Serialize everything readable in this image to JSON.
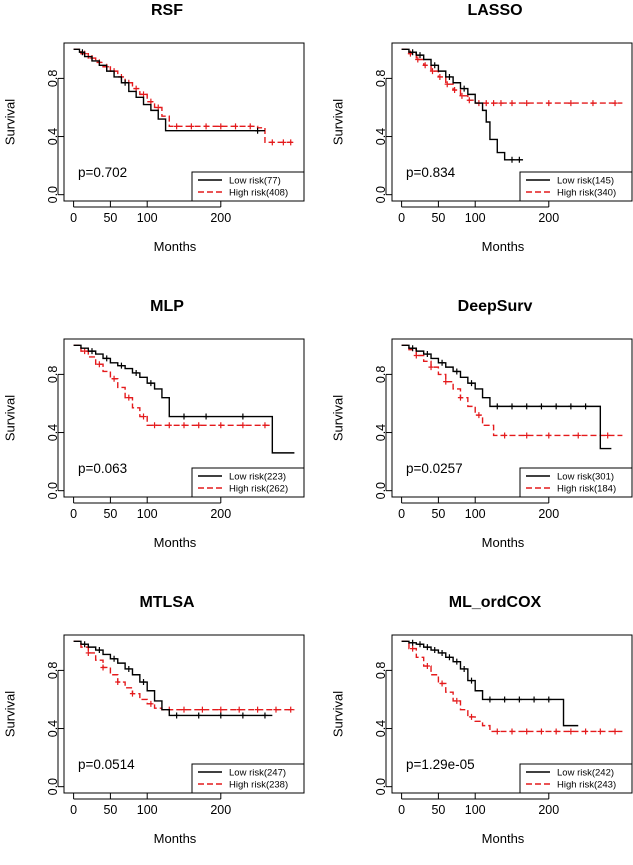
{
  "chart_data": [
    {
      "type": "line",
      "title": "RSF",
      "xlabel": "Months",
      "ylabel": "Survival",
      "xlim": [
        0,
        300
      ],
      "ylim": [
        0,
        1
      ],
      "xticks": [
        0,
        50,
        100,
        200
      ],
      "yticks": [
        0.0,
        0.4,
        0.8
      ],
      "p_value": "p=0.702",
      "legend_position": "bottom-right",
      "series": [
        {
          "name": "Low risk(77)",
          "color": "#000000",
          "dash": "solid",
          "x": [
            0,
            8,
            15,
            25,
            35,
            45,
            55,
            65,
            75,
            85,
            95,
            105,
            115,
            125,
            260
          ],
          "y": [
            1.0,
            0.98,
            0.95,
            0.92,
            0.89,
            0.85,
            0.81,
            0.77,
            0.71,
            0.67,
            0.62,
            0.58,
            0.52,
            0.44,
            0.44
          ],
          "censors": [
            12,
            70,
            250
          ]
        },
        {
          "name": "High risk(408)",
          "color": "#e41a1c",
          "dash": "dashed",
          "x": [
            0,
            10,
            20,
            30,
            40,
            50,
            60,
            70,
            80,
            90,
            100,
            110,
            120,
            130,
            250,
            260,
            300
          ],
          "y": [
            1.0,
            0.97,
            0.94,
            0.91,
            0.88,
            0.85,
            0.81,
            0.77,
            0.73,
            0.69,
            0.64,
            0.6,
            0.54,
            0.47,
            0.46,
            0.36,
            0.36
          ],
          "censors": [
            15,
            25,
            35,
            45,
            55,
            65,
            75,
            85,
            95,
            105,
            115,
            140,
            160,
            180,
            200,
            220,
            240,
            270,
            285,
            295
          ]
        }
      ]
    },
    {
      "type": "line",
      "title": "LASSO",
      "xlabel": "Months",
      "ylabel": "Survival",
      "xlim": [
        0,
        300
      ],
      "ylim": [
        0,
        1
      ],
      "xticks": [
        0,
        50,
        100,
        200
      ],
      "yticks": [
        0.0,
        0.4,
        0.8
      ],
      "p_value": "p=0.834",
      "legend_position": "bottom-right",
      "series": [
        {
          "name": "Low risk(145)",
          "color": "#000000",
          "dash": "solid",
          "x": [
            0,
            10,
            20,
            30,
            40,
            50,
            60,
            70,
            80,
            90,
            100,
            110,
            115,
            120,
            130,
            140,
            165
          ],
          "y": [
            1.0,
            0.98,
            0.96,
            0.93,
            0.89,
            0.85,
            0.81,
            0.77,
            0.73,
            0.69,
            0.63,
            0.58,
            0.5,
            0.38,
            0.29,
            0.24,
            0.24
          ],
          "censors": [
            15,
            25,
            45,
            65,
            85,
            150,
            160
          ]
        },
        {
          "name": "High risk(340)",
          "color": "#e41a1c",
          "dash": "dashed",
          "x": [
            0,
            10,
            20,
            30,
            40,
            50,
            60,
            70,
            80,
            90,
            100,
            300
          ],
          "y": [
            1.0,
            0.97,
            0.93,
            0.89,
            0.85,
            0.81,
            0.76,
            0.72,
            0.68,
            0.65,
            0.63,
            0.63
          ],
          "censors": [
            12,
            22,
            32,
            42,
            52,
            62,
            72,
            82,
            92,
            105,
            115,
            125,
            135,
            150,
            170,
            200,
            230,
            260,
            290
          ]
        }
      ]
    },
    {
      "type": "line",
      "title": "MLP",
      "xlabel": "Months",
      "ylabel": "Survival",
      "xlim": [
        0,
        300
      ],
      "ylim": [
        0,
        1
      ],
      "xticks": [
        0,
        50,
        100,
        200
      ],
      "yticks": [
        0.0,
        0.4,
        0.8
      ],
      "p_value": "p=0.063",
      "legend_position": "bottom-right",
      "series": [
        {
          "name": "Low risk(223)",
          "color": "#000000",
          "dash": "solid",
          "x": [
            0,
            10,
            20,
            30,
            40,
            50,
            60,
            70,
            80,
            90,
            100,
            110,
            120,
            130,
            270,
            300
          ],
          "y": [
            1.0,
            0.98,
            0.96,
            0.94,
            0.91,
            0.88,
            0.86,
            0.84,
            0.81,
            0.78,
            0.74,
            0.7,
            0.64,
            0.51,
            0.26,
            0.26
          ],
          "censors": [
            25,
            45,
            65,
            85,
            105,
            150,
            180,
            230
          ]
        },
        {
          "name": "High risk(262)",
          "color": "#e41a1c",
          "dash": "dashed",
          "x": [
            0,
            10,
            20,
            30,
            40,
            50,
            60,
            70,
            80,
            90,
            100,
            270
          ],
          "y": [
            1.0,
            0.96,
            0.92,
            0.87,
            0.82,
            0.77,
            0.71,
            0.64,
            0.57,
            0.51,
            0.45,
            0.45
          ],
          "censors": [
            15,
            35,
            55,
            75,
            95,
            110,
            130,
            150,
            170,
            200,
            230,
            260
          ]
        }
      ]
    },
    {
      "type": "line",
      "title": "DeepSurv",
      "xlabel": "Months",
      "ylabel": "Survival",
      "xlim": [
        0,
        300
      ],
      "ylim": [
        0,
        1
      ],
      "xticks": [
        0,
        50,
        100,
        200
      ],
      "yticks": [
        0.0,
        0.4,
        0.8
      ],
      "p_value": "p=0.0257",
      "legend_position": "bottom-right",
      "series": [
        {
          "name": "Low risk(301)",
          "color": "#000000",
          "dash": "solid",
          "x": [
            0,
            10,
            20,
            30,
            40,
            50,
            60,
            70,
            80,
            90,
            100,
            110,
            120,
            260,
            270,
            285
          ],
          "y": [
            1.0,
            0.98,
            0.96,
            0.94,
            0.91,
            0.88,
            0.85,
            0.82,
            0.78,
            0.74,
            0.7,
            0.64,
            0.58,
            0.58,
            0.29,
            0.29
          ],
          "censors": [
            15,
            35,
            55,
            75,
            95,
            130,
            150,
            170,
            190,
            210,
            230,
            250
          ]
        },
        {
          "name": "High risk(184)",
          "color": "#e41a1c",
          "dash": "dashed",
          "x": [
            0,
            10,
            20,
            30,
            40,
            50,
            60,
            70,
            80,
            90,
            100,
            110,
            125,
            300
          ],
          "y": [
            1.0,
            0.97,
            0.93,
            0.89,
            0.85,
            0.8,
            0.75,
            0.7,
            0.64,
            0.58,
            0.52,
            0.45,
            0.38,
            0.38
          ],
          "censors": [
            20,
            40,
            60,
            80,
            105,
            140,
            170,
            200,
            240,
            280
          ]
        }
      ]
    },
    {
      "type": "line",
      "title": "MTLSA",
      "xlabel": "Months",
      "ylabel": "Survival",
      "xlim": [
        0,
        300
      ],
      "ylim": [
        0,
        1
      ],
      "xticks": [
        0,
        50,
        100,
        200
      ],
      "yticks": [
        0.0,
        0.4,
        0.8
      ],
      "p_value": "p=0.0514",
      "legend_position": "bottom-right",
      "series": [
        {
          "name": "Low risk(247)",
          "color": "#000000",
          "dash": "solid",
          "x": [
            0,
            10,
            20,
            30,
            40,
            50,
            60,
            70,
            80,
            90,
            100,
            110,
            120,
            130,
            270
          ],
          "y": [
            1.0,
            0.98,
            0.96,
            0.94,
            0.91,
            0.88,
            0.85,
            0.81,
            0.77,
            0.72,
            0.66,
            0.59,
            0.53,
            0.49,
            0.49
          ],
          "censors": [
            15,
            35,
            55,
            75,
            95,
            140,
            170,
            200,
            230,
            260
          ]
        },
        {
          "name": "High risk(238)",
          "color": "#e41a1c",
          "dash": "dashed",
          "x": [
            0,
            10,
            20,
            30,
            40,
            50,
            60,
            70,
            80,
            90,
            100,
            110,
            120,
            300
          ],
          "y": [
            1.0,
            0.96,
            0.92,
            0.87,
            0.82,
            0.77,
            0.72,
            0.68,
            0.64,
            0.6,
            0.57,
            0.54,
            0.53,
            0.53
          ],
          "censors": [
            20,
            40,
            60,
            80,
            105,
            130,
            150,
            175,
            200,
            225,
            250,
            275,
            295
          ]
        }
      ]
    },
    {
      "type": "line",
      "title": "ML_ordCOX",
      "xlabel": "Months",
      "ylabel": "Survival",
      "xlim": [
        0,
        300
      ],
      "ylim": [
        0,
        1
      ],
      "xticks": [
        0,
        50,
        100,
        200
      ],
      "yticks": [
        0.0,
        0.4,
        0.8
      ],
      "p_value": "p=1.29e-05",
      "legend_position": "bottom-right",
      "series": [
        {
          "name": "Low risk(242)",
          "color": "#000000",
          "dash": "solid",
          "x": [
            0,
            10,
            20,
            30,
            40,
            50,
            60,
            70,
            80,
            90,
            100,
            110,
            210,
            220,
            240
          ],
          "y": [
            1.0,
            0.99,
            0.98,
            0.96,
            0.94,
            0.92,
            0.89,
            0.86,
            0.81,
            0.73,
            0.66,
            0.6,
            0.6,
            0.42,
            0.42
          ],
          "censors": [
            15,
            25,
            35,
            45,
            55,
            65,
            75,
            85,
            95,
            120,
            140,
            160,
            180,
            200
          ]
        },
        {
          "name": "High risk(243)",
          "color": "#e41a1c",
          "dash": "dashed",
          "x": [
            0,
            10,
            20,
            30,
            40,
            50,
            60,
            70,
            80,
            90,
            100,
            110,
            120,
            300
          ],
          "y": [
            1.0,
            0.95,
            0.89,
            0.83,
            0.77,
            0.71,
            0.65,
            0.59,
            0.53,
            0.48,
            0.45,
            0.42,
            0.38,
            0.38
          ],
          "censors": [
            15,
            35,
            55,
            75,
            95,
            130,
            150,
            170,
            190,
            210,
            230,
            250,
            270,
            290
          ]
        }
      ]
    }
  ]
}
